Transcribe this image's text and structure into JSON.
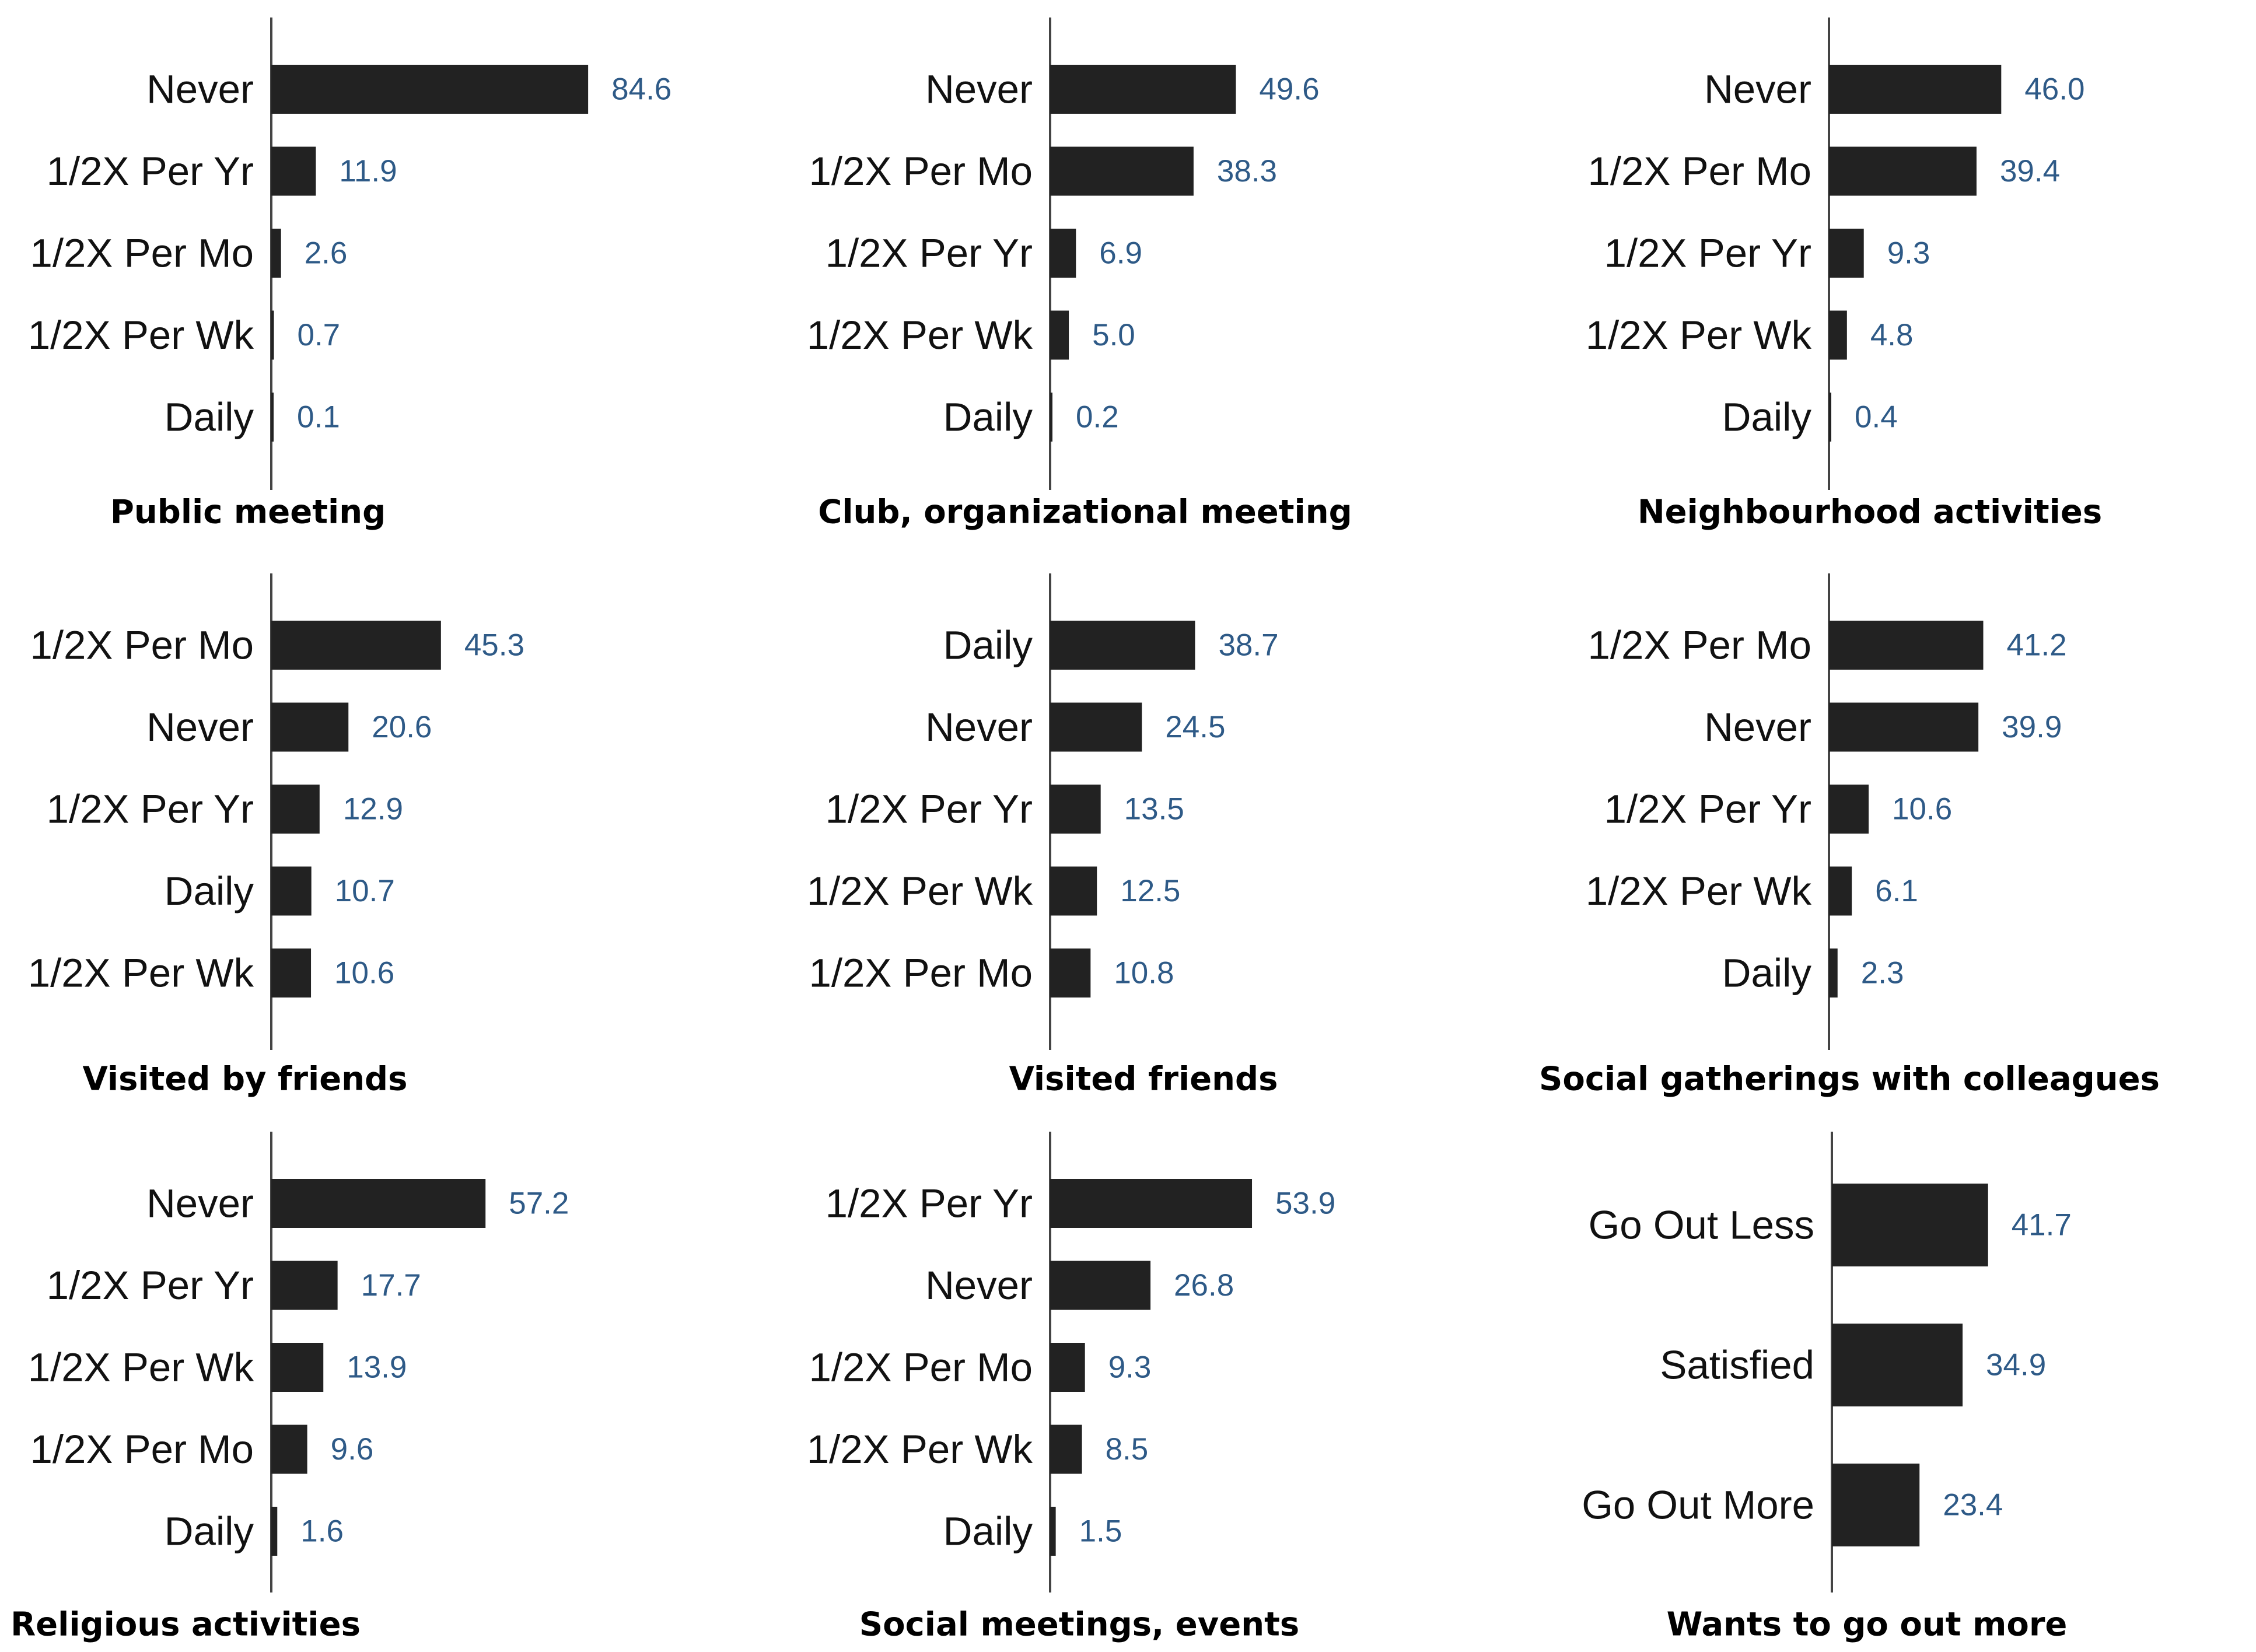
{
  "colors": {
    "bar": "#222222",
    "value_label": "#2e5a87",
    "axis": "#444444",
    "text": "#111111"
  },
  "chart_data": [
    {
      "type": "bar",
      "orientation": "horizontal",
      "title": "Public meeting",
      "categories": [
        "Never",
        "1/2X Per Yr",
        "1/2X Per Mo",
        "1/2X Per Wk",
        "Daily"
      ],
      "values": [
        84.6,
        11.9,
        2.6,
        0.7,
        0.1
      ],
      "xlim": [
        0,
        100
      ]
    },
    {
      "type": "bar",
      "orientation": "horizontal",
      "title": "Club, organizational meeting",
      "categories": [
        "Never",
        "1/2X Per Mo",
        "1/2X Per Yr",
        "1/2X Per Wk",
        "Daily"
      ],
      "values": [
        49.6,
        38.3,
        6.9,
        5.0,
        0.2
      ],
      "value_labels": [
        "49.6",
        "38.3",
        "6.9",
        "5.0",
        "0.2"
      ],
      "xlim": [
        0,
        100
      ]
    },
    {
      "type": "bar",
      "orientation": "horizontal",
      "title": "Neighbourhood activities",
      "categories": [
        "Never",
        "1/2X Per Mo",
        "1/2X Per Yr",
        "1/2X Per Wk",
        "Daily"
      ],
      "values": [
        46.0,
        39.4,
        9.3,
        4.8,
        0.4
      ],
      "value_labels": [
        "46.0",
        "39.4",
        "9.3",
        "4.8",
        "0.4"
      ],
      "xlim": [
        0,
        100
      ]
    },
    {
      "type": "bar",
      "orientation": "horizontal",
      "title": "Visited by friends",
      "categories": [
        "1/2X Per Mo",
        "Never",
        "1/2X Per Yr",
        "Daily",
        "1/2X Per Wk"
      ],
      "values": [
        45.3,
        20.6,
        12.9,
        10.7,
        10.6
      ],
      "xlim": [
        0,
        100
      ]
    },
    {
      "type": "bar",
      "orientation": "horizontal",
      "title": "Visited friends",
      "categories": [
        "Daily",
        "Never",
        "1/2X Per Yr",
        "1/2X Per Wk",
        "1/2X Per Mo"
      ],
      "values": [
        38.7,
        24.5,
        13.5,
        12.5,
        10.8
      ],
      "xlim": [
        0,
        100
      ]
    },
    {
      "type": "bar",
      "orientation": "horizontal",
      "title": "Social gatherings with colleagues",
      "categories": [
        "1/2X Per Mo",
        "Never",
        "1/2X Per Yr",
        "1/2X Per Wk",
        "Daily"
      ],
      "values": [
        41.2,
        39.9,
        10.6,
        6.1,
        2.3
      ],
      "xlim": [
        0,
        100
      ]
    },
    {
      "type": "bar",
      "orientation": "horizontal",
      "title": "Religious activities",
      "categories": [
        "Never",
        "1/2X Per Yr",
        "1/2X Per Wk",
        "1/2X Per Mo",
        "Daily"
      ],
      "values": [
        57.2,
        17.7,
        13.9,
        9.6,
        1.6
      ],
      "xlim": [
        0,
        100
      ]
    },
    {
      "type": "bar",
      "orientation": "horizontal",
      "title": "Social meetings, events",
      "categories": [
        "1/2X Per Yr",
        "Never",
        "1/2X Per Mo",
        "1/2X Per Wk",
        "Daily"
      ],
      "values": [
        53.9,
        26.8,
        9.3,
        8.5,
        1.5
      ],
      "xlim": [
        0,
        100
      ]
    },
    {
      "type": "bar",
      "orientation": "horizontal",
      "title": "Wants to go out more",
      "categories": [
        "Go Out Less",
        "Satisfied",
        "Go Out More"
      ],
      "values": [
        41.7,
        34.9,
        23.4
      ],
      "xlim": [
        0,
        100
      ]
    }
  ]
}
